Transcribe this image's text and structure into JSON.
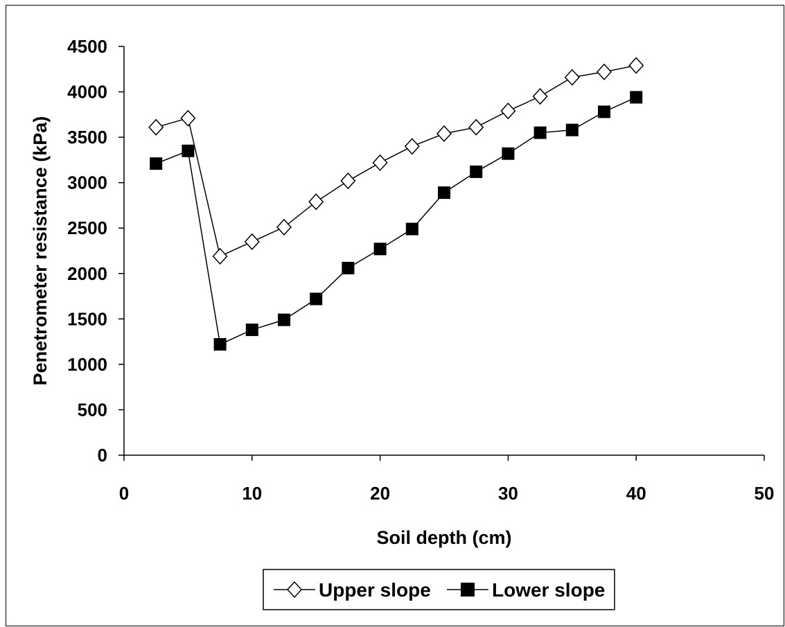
{
  "chart_data": {
    "type": "line",
    "title": "",
    "xlabel": "Soil depth (cm)",
    "ylabel": "Penetrometer resistance (kPa)",
    "xlim": [
      0,
      50
    ],
    "ylim": [
      0,
      4500
    ],
    "xticks": [
      "0",
      "10",
      "20",
      "30",
      "40",
      "50"
    ],
    "yticks": [
      "0",
      "500",
      "1000",
      "1500",
      "2000",
      "2500",
      "3000",
      "3500",
      "4000",
      "4500"
    ],
    "grid": false,
    "legend_position": "bottom",
    "x": [
      2.5,
      5,
      7.5,
      10,
      12.5,
      15,
      17.5,
      20,
      22.5,
      25,
      27.5,
      30,
      32.5,
      35,
      37.5,
      40
    ],
    "series": [
      {
        "name": "Upper slope",
        "marker": "open-diamond",
        "color": "#000000",
        "values": [
          3610,
          3710,
          2190,
          2350,
          2510,
          2790,
          3020,
          3220,
          3400,
          3540,
          3610,
          3790,
          3950,
          4160,
          4220,
          4290
        ]
      },
      {
        "name": "Lower slope",
        "marker": "filled-square",
        "color": "#000000",
        "values": [
          3210,
          3350,
          1220,
          1380,
          1490,
          1720,
          2060,
          2270,
          2490,
          2890,
          3120,
          3320,
          3550,
          3580,
          3780,
          3940
        ]
      }
    ]
  }
}
